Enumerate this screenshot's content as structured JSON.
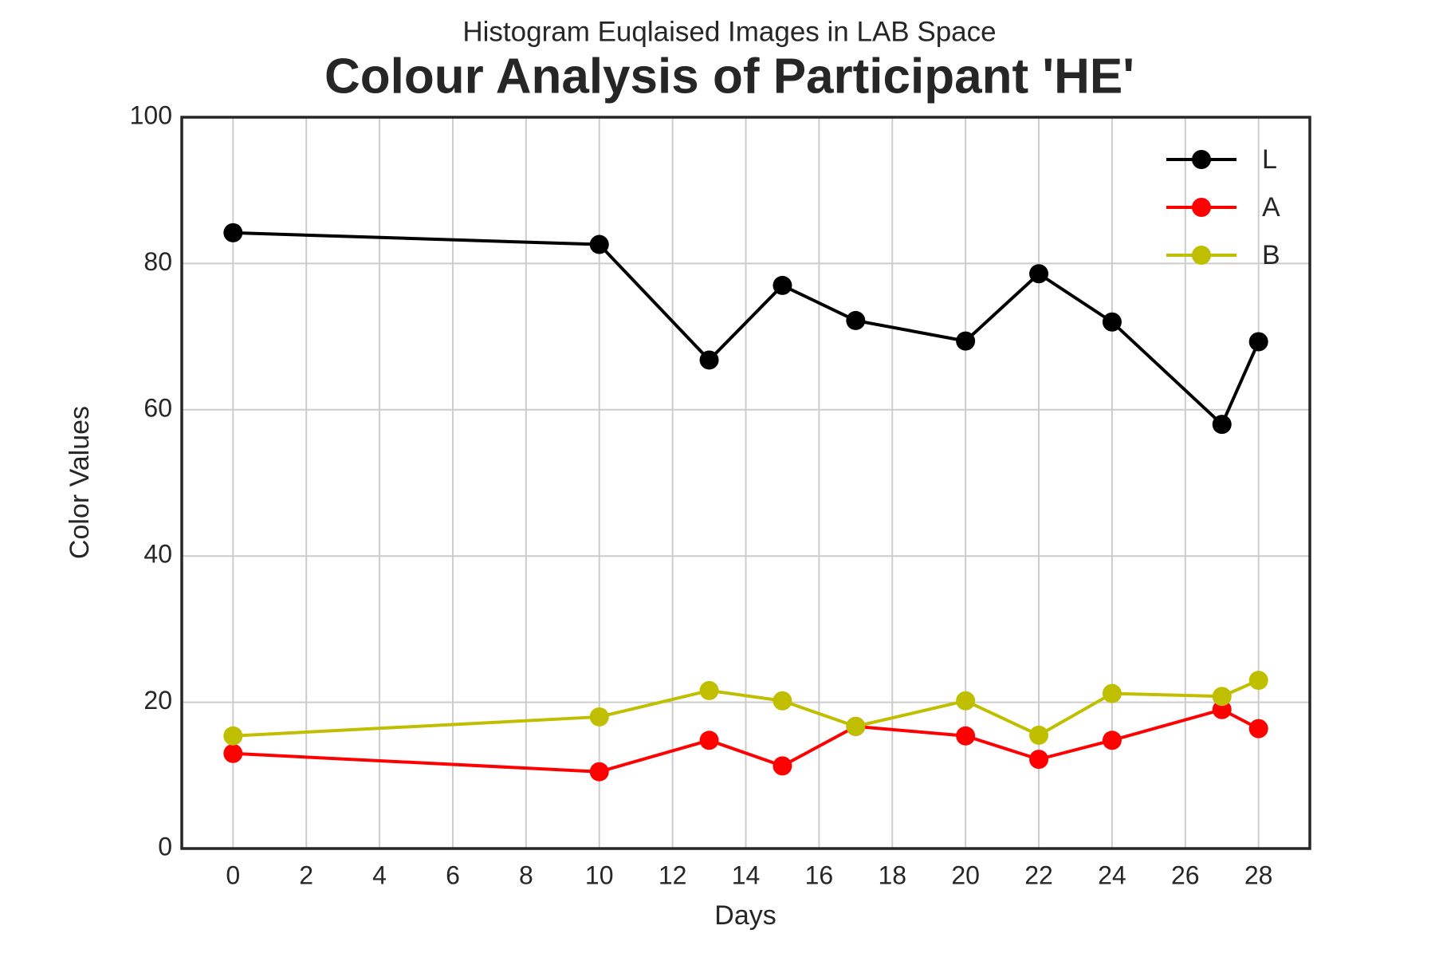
{
  "chart_data": {
    "type": "line",
    "subtitle": "Histogram Euqlaised Images in LAB Space",
    "title": "Colour Analysis of Participant 'HE'",
    "x_label": "Days",
    "y_label": "Color Values",
    "x": [
      0,
      10,
      13,
      15,
      17,
      20,
      22,
      24,
      27,
      28
    ],
    "series": [
      {
        "name": "L",
        "color": "#000000",
        "values": [
          84.2,
          82.6,
          66.8,
          77.0,
          72.2,
          69.4,
          78.6,
          72.0,
          58.0,
          69.3
        ]
      },
      {
        "name": "A",
        "color": "#ff0000",
        "values": [
          13.0,
          10.5,
          14.8,
          11.3,
          16.7,
          15.4,
          12.2,
          14.8,
          19.0,
          16.4
        ]
      },
      {
        "name": "B",
        "color": "#bfbf00",
        "values": [
          15.4,
          18.0,
          21.6,
          20.2,
          16.7,
          20.2,
          15.5,
          21.2,
          20.8,
          23.0
        ]
      }
    ],
    "xlim": [
      -1.4,
      29.4
    ],
    "ylim": [
      0,
      100
    ],
    "xticks": [
      0,
      2,
      4,
      6,
      8,
      10,
      12,
      14,
      16,
      18,
      20,
      22,
      24,
      26,
      28
    ],
    "yticks": [
      0,
      20,
      40,
      60,
      80,
      100
    ],
    "grid": true,
    "legend": "upper right"
  }
}
